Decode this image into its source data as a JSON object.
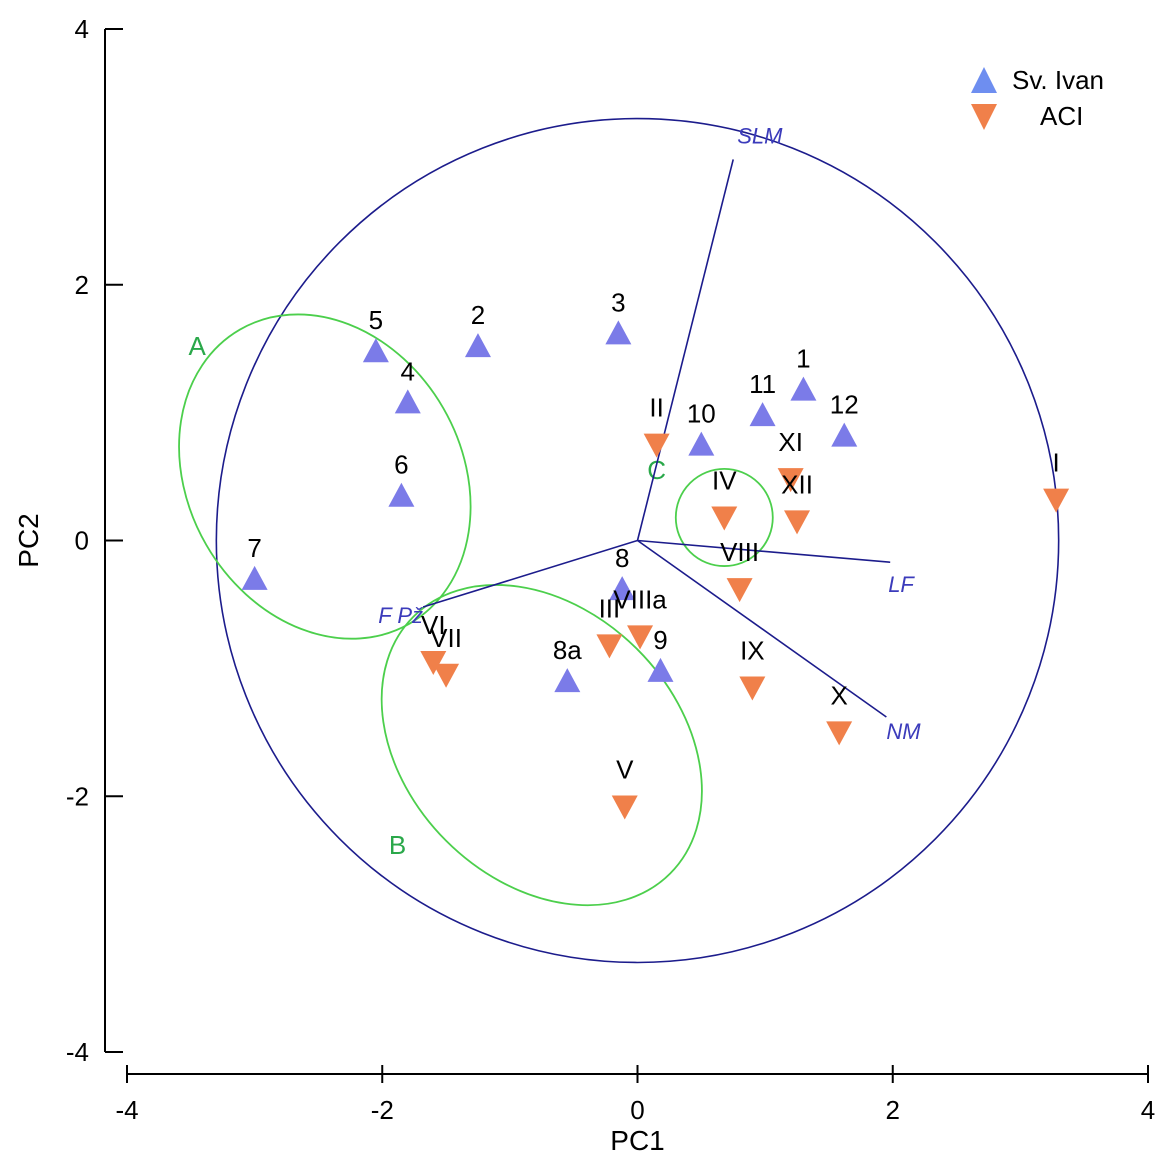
{
  "chart_data": {
    "type": "scatter",
    "title": "",
    "xlabel": "PC1",
    "ylabel": "PC2",
    "xlim": [
      -4,
      4
    ],
    "ylim": [
      -4,
      4
    ],
    "xticks": [
      "-4",
      "-2",
      "0",
      "2",
      "4"
    ],
    "yticks": [
      "-4",
      "-2",
      "0",
      "2",
      "4"
    ],
    "grid": false,
    "legend_position": "top-right",
    "colors": {
      "sv_ivan": "#7b7be8",
      "aci": "#f0804a",
      "vectors": "#1c1c8c",
      "groups": "#4ccf4c"
    },
    "series": [
      {
        "name": "Sv. Ivan",
        "marker": "triangle-up",
        "points": [
          {
            "label": "1",
            "x": 1.3,
            "y": 1.18
          },
          {
            "label": "2",
            "x": -1.25,
            "y": 1.52
          },
          {
            "label": "3",
            "x": -0.15,
            "y": 1.62
          },
          {
            "label": "4",
            "x": -1.8,
            "y": 1.08
          },
          {
            "label": "5",
            "x": -2.05,
            "y": 1.48
          },
          {
            "label": "6",
            "x": -1.85,
            "y": 0.35
          },
          {
            "label": "7",
            "x": -3.0,
            "y": -0.3
          },
          {
            "label": "8",
            "x": -0.12,
            "y": -0.38
          },
          {
            "label": "8a",
            "x": -0.55,
            "y": -1.1
          },
          {
            "label": "9",
            "x": 0.18,
            "y": -1.02
          },
          {
            "label": "10",
            "x": 0.5,
            "y": 0.75
          },
          {
            "label": "11",
            "x": 0.98,
            "y": 0.98
          },
          {
            "label": "12",
            "x": 1.62,
            "y": 0.82
          }
        ]
      },
      {
        "name": "ACI",
        "marker": "triangle-down",
        "points": [
          {
            "label": "I",
            "x": 3.28,
            "y": 0.32
          },
          {
            "label": "II",
            "x": 0.15,
            "y": 0.75
          },
          {
            "label": "III",
            "x": -0.22,
            "y": -0.82
          },
          {
            "label": "IV",
            "x": 0.68,
            "y": 0.18
          },
          {
            "label": "V",
            "x": -0.1,
            "y": -2.08
          },
          {
            "label": "VI",
            "x": -1.6,
            "y": -0.95
          },
          {
            "label": "VII",
            "x": -1.5,
            "y": -1.05
          },
          {
            "label": "VIII",
            "x": 0.8,
            "y": -0.38
          },
          {
            "label": "VIIIa",
            "x": 0.02,
            "y": -0.75
          },
          {
            "label": "IX",
            "x": 0.9,
            "y": -1.15
          },
          {
            "label": "X",
            "x": 1.58,
            "y": -1.5
          },
          {
            "label": "XI",
            "x": 1.2,
            "y": 0.48
          },
          {
            "label": "XII",
            "x": 1.25,
            "y": 0.15
          }
        ]
      }
    ],
    "vectors": [
      {
        "label": "SLM",
        "x": 0.75,
        "y": 2.98
      },
      {
        "label": "LF",
        "x": 1.98,
        "y": -0.17
      },
      {
        "label": "NM",
        "x": 1.95,
        "y": -1.38
      },
      {
        "label": "F Pž",
        "x": -1.68,
        "y": -0.52
      }
    ],
    "correlation_circle": {
      "cx": 0,
      "cy": 0,
      "r": 3.3
    },
    "groups": [
      {
        "label": "A",
        "cx": -2.45,
        "cy": 0.5,
        "rx": 1.33,
        "ry": 1.07,
        "rotation": 60,
        "label_x": -3.45,
        "label_y": 1.45
      },
      {
        "label": "B",
        "cx": -0.75,
        "cy": -1.6,
        "rx": 1.06,
        "ry": 1.42,
        "rotation": -45,
        "label_x": -1.88,
        "label_y": -2.45
      },
      {
        "label": "C",
        "cx": 0.68,
        "cy": 0.18,
        "rx": 0.38,
        "ry": 0.38,
        "rotation": 0,
        "label_x": 0.15,
        "label_y": 0.48
      }
    ]
  }
}
